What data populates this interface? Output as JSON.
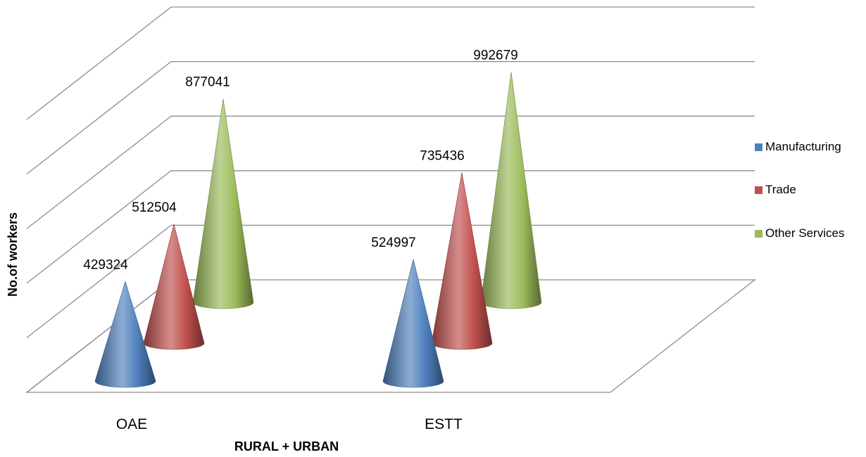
{
  "chart_data": {
    "type": "bar",
    "bar_shape": "3d-cone",
    "categories": [
      "OAE",
      "ESTT"
    ],
    "series": [
      {
        "name": "Manufacturing",
        "values": [
          429324,
          524997
        ],
        "color": "#4f81bd"
      },
      {
        "name": "Trade",
        "values": [
          512504,
          735436
        ],
        "color": "#c0504d"
      },
      {
        "name": "Other Services",
        "values": [
          877041,
          992679
        ],
        "color": "#9bbb59"
      }
    ],
    "data_labels": [
      [
        "429324",
        "524997"
      ],
      [
        "512504",
        "735436"
      ],
      [
        "877041",
        "992679"
      ]
    ],
    "title": "",
    "xlabel": "RURAL + URBAN",
    "ylabel": "No.of workers",
    "ylim": [
      0,
      1200000
    ],
    "grid": true,
    "legend_position": "right"
  }
}
